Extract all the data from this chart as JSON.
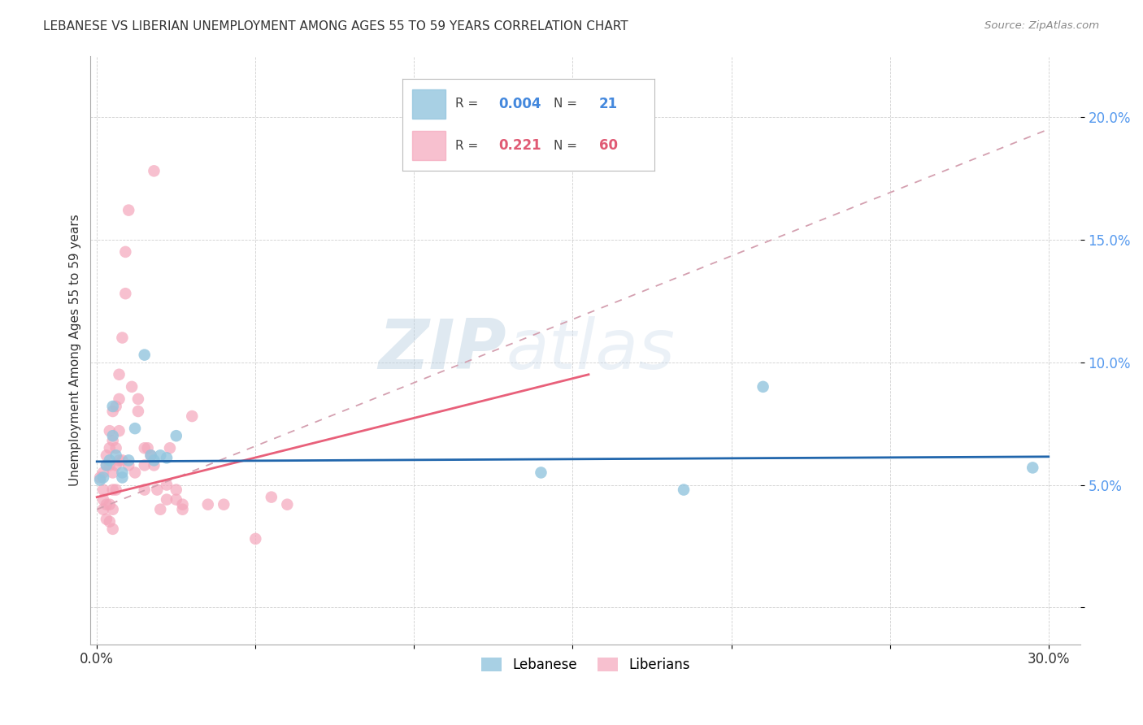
{
  "title": "LEBANESE VS LIBERIAN UNEMPLOYMENT AMONG AGES 55 TO 59 YEARS CORRELATION CHART",
  "source": "Source: ZipAtlas.com",
  "ylabel": "Unemployment Among Ages 55 to 59 years",
  "xlim": [
    -0.002,
    0.31
  ],
  "ylim": [
    -0.015,
    0.225
  ],
  "xticks": [
    0.0,
    0.05,
    0.1,
    0.15,
    0.2,
    0.25,
    0.3
  ],
  "xticklabels": [
    "0.0%",
    "",
    "",
    "",
    "",
    "",
    "30.0%"
  ],
  "yticks": [
    0.0,
    0.05,
    0.1,
    0.15,
    0.2
  ],
  "yticklabels": [
    "",
    "5.0%",
    "10.0%",
    "15.0%",
    "20.0%"
  ],
  "watermark_zip": "ZIP",
  "watermark_atlas": "atlas",
  "legend_lebanese_label": "Lebanese",
  "legend_liberian_label": "Liberians",
  "lebanese_R": "0.004",
  "lebanese_N": "21",
  "liberian_R": "0.221",
  "liberian_N": "60",
  "lebanese_color": "#92c5de",
  "liberian_color": "#f4a6bb",
  "lebanese_trendline_color": "#2166ac",
  "liberian_trendline_color": "#e8607a",
  "liberian_dashed_color": "#e8a0b0",
  "grid_color": "#d0d0d0",
  "background_color": "#ffffff",
  "lebanese_points": [
    [
      0.001,
      0.052
    ],
    [
      0.002,
      0.053
    ],
    [
      0.003,
      0.058
    ],
    [
      0.004,
      0.06
    ],
    [
      0.005,
      0.07
    ],
    [
      0.005,
      0.082
    ],
    [
      0.006,
      0.062
    ],
    [
      0.008,
      0.055
    ],
    [
      0.008,
      0.053
    ],
    [
      0.01,
      0.06
    ],
    [
      0.012,
      0.073
    ],
    [
      0.015,
      0.103
    ],
    [
      0.017,
      0.062
    ],
    [
      0.018,
      0.06
    ],
    [
      0.02,
      0.062
    ],
    [
      0.022,
      0.061
    ],
    [
      0.025,
      0.07
    ],
    [
      0.14,
      0.055
    ],
    [
      0.185,
      0.048
    ],
    [
      0.21,
      0.09
    ],
    [
      0.295,
      0.057
    ]
  ],
  "liberian_points": [
    [
      0.001,
      0.053
    ],
    [
      0.002,
      0.055
    ],
    [
      0.002,
      0.048
    ],
    [
      0.002,
      0.044
    ],
    [
      0.002,
      0.04
    ],
    [
      0.003,
      0.062
    ],
    [
      0.003,
      0.058
    ],
    [
      0.003,
      0.042
    ],
    [
      0.003,
      0.036
    ],
    [
      0.004,
      0.072
    ],
    [
      0.004,
      0.065
    ],
    [
      0.004,
      0.058
    ],
    [
      0.004,
      0.042
    ],
    [
      0.004,
      0.035
    ],
    [
      0.005,
      0.08
    ],
    [
      0.005,
      0.068
    ],
    [
      0.005,
      0.055
    ],
    [
      0.005,
      0.048
    ],
    [
      0.005,
      0.04
    ],
    [
      0.005,
      0.032
    ],
    [
      0.006,
      0.082
    ],
    [
      0.006,
      0.065
    ],
    [
      0.006,
      0.058
    ],
    [
      0.006,
      0.048
    ],
    [
      0.007,
      0.095
    ],
    [
      0.007,
      0.085
    ],
    [
      0.007,
      0.072
    ],
    [
      0.007,
      0.06
    ],
    [
      0.008,
      0.11
    ],
    [
      0.008,
      0.06
    ],
    [
      0.009,
      0.145
    ],
    [
      0.009,
      0.128
    ],
    [
      0.01,
      0.162
    ],
    [
      0.01,
      0.058
    ],
    [
      0.011,
      0.09
    ],
    [
      0.012,
      0.055
    ],
    [
      0.013,
      0.085
    ],
    [
      0.013,
      0.08
    ],
    [
      0.015,
      0.065
    ],
    [
      0.015,
      0.058
    ],
    [
      0.015,
      0.048
    ],
    [
      0.016,
      0.065
    ],
    [
      0.017,
      0.062
    ],
    [
      0.018,
      0.178
    ],
    [
      0.018,
      0.058
    ],
    [
      0.019,
      0.048
    ],
    [
      0.02,
      0.04
    ],
    [
      0.022,
      0.05
    ],
    [
      0.022,
      0.044
    ],
    [
      0.023,
      0.065
    ],
    [
      0.025,
      0.048
    ],
    [
      0.025,
      0.044
    ],
    [
      0.027,
      0.042
    ],
    [
      0.027,
      0.04
    ],
    [
      0.03,
      0.078
    ],
    [
      0.035,
      0.042
    ],
    [
      0.04,
      0.042
    ],
    [
      0.05,
      0.028
    ],
    [
      0.055,
      0.045
    ],
    [
      0.06,
      0.042
    ]
  ],
  "liberian_solid_line": [
    [
      0.0,
      0.045
    ],
    [
      0.155,
      0.095
    ]
  ],
  "liberian_dashed_line": [
    [
      0.0,
      0.04
    ],
    [
      0.3,
      0.195
    ]
  ],
  "lebanese_solid_line": [
    [
      0.0,
      0.0595
    ],
    [
      0.3,
      0.0615
    ]
  ]
}
